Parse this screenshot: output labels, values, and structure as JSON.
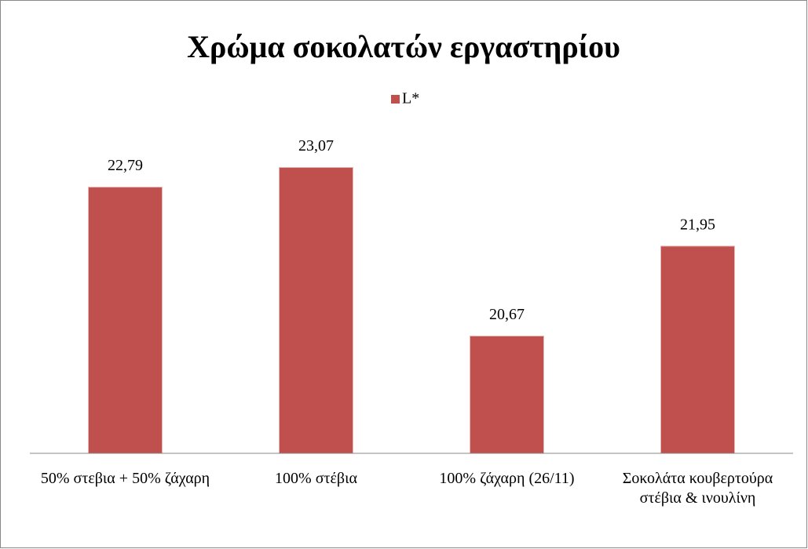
{
  "chart_data": {
    "type": "bar",
    "title": "Χρώμα σοκολατών εργαστηρίου",
    "categories": [
      "50% στεβια + 50% ζάχαρη",
      "100% στέβια",
      "100% ζάχαρη (26/11)",
      "Σοκολάτα κουβερτούρα στέβια & ινουλίνη"
    ],
    "series": [
      {
        "name": "L*",
        "color": "#c0504d",
        "values": [
          22.79,
          23.07,
          20.67,
          21.95
        ],
        "value_labels": [
          "22,79",
          "23,07",
          "20,67",
          "21,95"
        ]
      }
    ],
    "ylim": [
      19,
      23.5
    ],
    "legend": "top"
  }
}
